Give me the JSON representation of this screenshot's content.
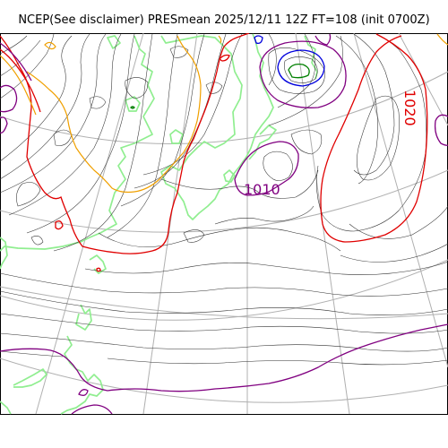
{
  "title": "NCEP(See disclaimer) PRESmean 2025/12/11 12Z FT=108 (init 0700Z)",
  "labels": [
    {
      "text": "1010",
      "color": "#800080"
    },
    {
      "text": "1020",
      "color": "#e00000"
    }
  ],
  "colors": {
    "isobar": "#303030",
    "isobar_1000_or_1020": "#e00000",
    "isobar_1010": "#800080",
    "isobar_990_and_below": "#f0a000",
    "low_center_blue": "#0000dd",
    "low_center_green": "#008000",
    "coastline": "#90ee90",
    "graticule": "#b0b0b0"
  }
}
